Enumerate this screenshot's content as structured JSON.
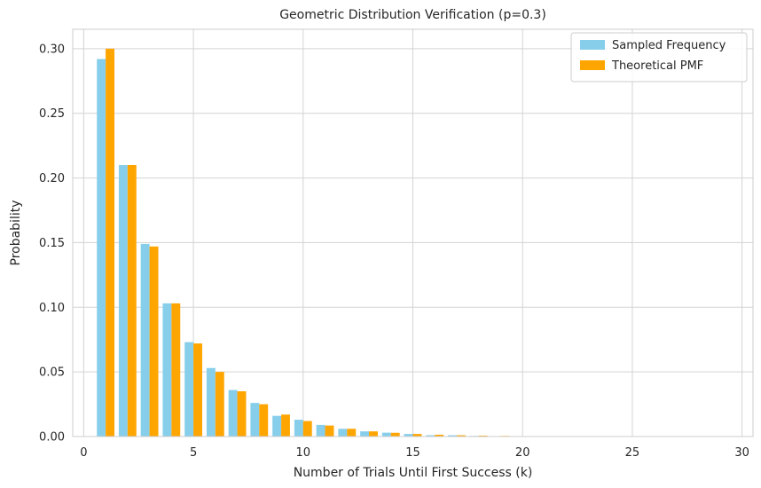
{
  "chart_data": {
    "type": "bar",
    "title": "Geometric Distribution Verification (p=0.3)",
    "xlabel": "Number of Trials Until First Success (k)",
    "ylabel": "Probability",
    "xlim": [
      -0.5,
      30.5
    ],
    "ylim": [
      0,
      0.315
    ],
    "xticks": [
      0,
      5,
      10,
      15,
      20,
      25,
      30
    ],
    "yticks": [
      0.0,
      0.05,
      0.1,
      0.15,
      0.2,
      0.25,
      0.3
    ],
    "xtick_labels": [
      "0",
      "5",
      "10",
      "15",
      "20",
      "25",
      "30"
    ],
    "ytick_labels": [
      "0.00",
      "0.05",
      "0.10",
      "0.15",
      "0.20",
      "0.25",
      "0.30"
    ],
    "grid": true,
    "legend_position": "top-right",
    "colors": {
      "sampled": "#87CEEB",
      "theoretical": "#FFA500",
      "grid": "#d3d3d3"
    },
    "k": [
      1,
      2,
      3,
      4,
      5,
      6,
      7,
      8,
      9,
      10,
      11,
      12,
      13,
      14,
      15,
      16,
      17,
      18,
      19,
      20,
      21,
      22,
      23,
      24,
      25,
      26,
      27,
      28,
      29
    ],
    "series": [
      {
        "name": "Sampled Frequency",
        "values": [
          0.292,
          0.21,
          0.149,
          0.103,
          0.073,
          0.053,
          0.036,
          0.026,
          0.016,
          0.013,
          0.009,
          0.006,
          0.004,
          0.003,
          0.002,
          0.001,
          0.001,
          0.0005,
          0.0003,
          0.0002,
          0.0001,
          0.0001,
          0.0001,
          0,
          0,
          0,
          0,
          0,
          0
        ]
      },
      {
        "name": "Theoretical PMF",
        "values": [
          0.3,
          0.21,
          0.147,
          0.103,
          0.072,
          0.05,
          0.035,
          0.025,
          0.017,
          0.012,
          0.0085,
          0.006,
          0.004,
          0.0029,
          0.002,
          0.0014,
          0.001,
          0.0007,
          0.0005,
          0.0003,
          0.0002,
          0.00016,
          0.00011,
          8e-05,
          5e-05,
          4e-05,
          3e-05,
          2e-05,
          1e-05
        ]
      }
    ]
  }
}
